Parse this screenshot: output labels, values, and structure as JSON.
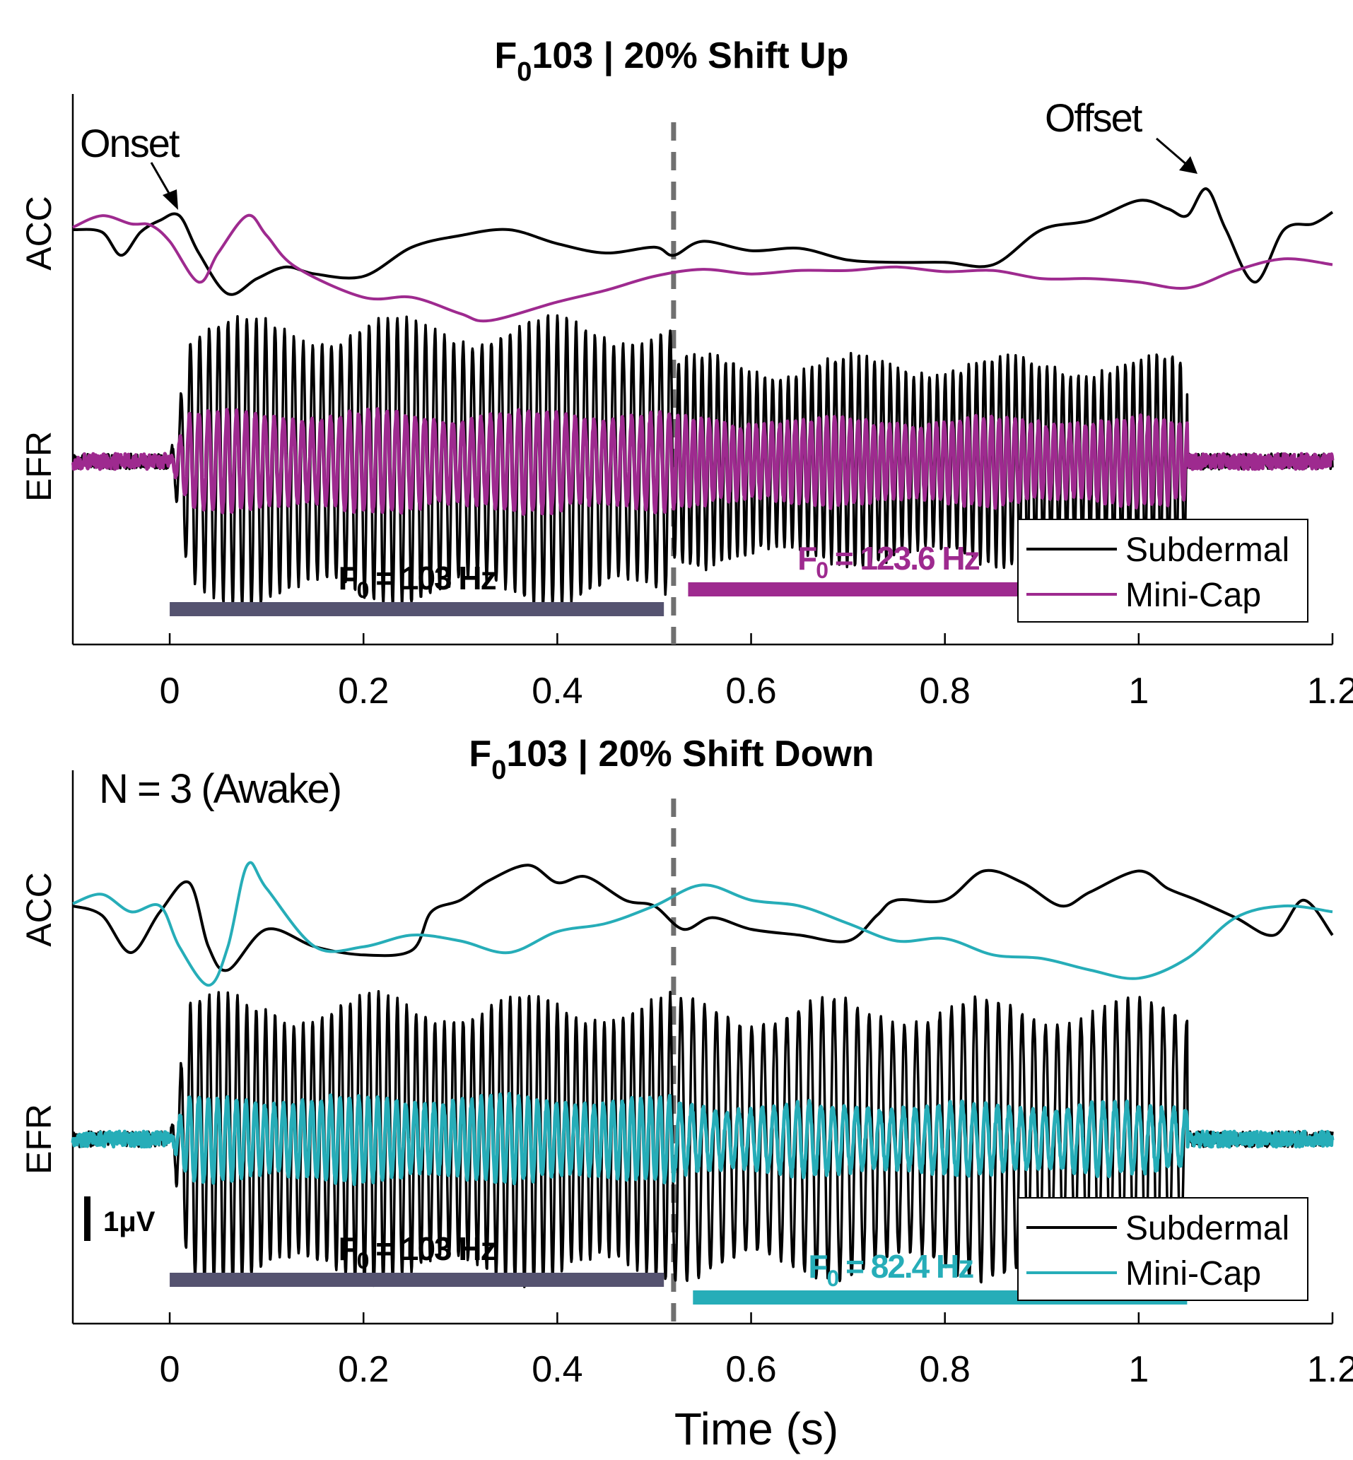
{
  "chart_data": [
    {
      "type": "line",
      "title": "F",
      "title_sub": "0",
      "title_rest": "103 | 20% Shift Up",
      "xlabel": "",
      "ylabels": [
        "ACC",
        "EFR"
      ],
      "xlim": [
        -0.1,
        1.2
      ],
      "xticks": [
        "0",
        "0.2",
        "0.4",
        "0.6",
        "0.8",
        "1",
        "1.2"
      ],
      "xtick_values": [
        0,
        0.2,
        0.4,
        0.6,
        0.8,
        1.0,
        1.2
      ],
      "grid": false,
      "legend": {
        "placement": "lower-right",
        "entries": [
          "Subdermal",
          "Mini-Cap"
        ]
      },
      "colors": {
        "subdermal": "#000000",
        "minicap": "#9e2a8f",
        "bar1": "#555370",
        "bar2": "#9e2a8f",
        "dashed": "#707070"
      },
      "shift_time_s": 0.52,
      "annotations": {
        "onset": "Onset",
        "offset": "Offset"
      },
      "annotation_times_s": {
        "onset": 0.01,
        "offset": 1.07
      },
      "segments": [
        {
          "label": "F",
          "sub": "0",
          "rest": " = 103 Hz",
          "start_s": 0.0,
          "end_s": 0.51,
          "f0_hz": 103
        },
        {
          "label": "F",
          "sub": "0",
          "rest": " = 123.6 Hz",
          "start_s": 0.535,
          "end_s": 1.05,
          "f0_hz": 123.6
        }
      ],
      "series": [
        {
          "name": "Subdermal",
          "signal": "ACC",
          "x": [
            -0.1,
            -0.07,
            -0.05,
            -0.03,
            -0.01,
            0.01,
            0.03,
            0.06,
            0.09,
            0.12,
            0.15,
            0.2,
            0.25,
            0.3,
            0.35,
            0.4,
            0.45,
            0.5,
            0.52,
            0.55,
            0.6,
            0.65,
            0.7,
            0.75,
            0.8,
            0.85,
            0.9,
            0.95,
            1.0,
            1.03,
            1.05,
            1.07,
            1.09,
            1.12,
            1.15,
            1.18,
            1.2
          ],
          "y": [
            0.0,
            -0.02,
            -0.22,
            -0.02,
            0.08,
            0.12,
            -0.2,
            -0.55,
            -0.42,
            -0.32,
            -0.38,
            -0.4,
            -0.15,
            -0.05,
            0.0,
            -0.12,
            -0.2,
            -0.15,
            -0.22,
            -0.1,
            -0.18,
            -0.16,
            -0.26,
            -0.28,
            -0.28,
            -0.3,
            0.0,
            0.08,
            0.25,
            0.18,
            0.12,
            0.35,
            0.0,
            -0.45,
            0.0,
            0.05,
            0.15
          ]
        },
        {
          "name": "Mini-Cap",
          "signal": "ACC",
          "x": [
            -0.1,
            -0.07,
            -0.04,
            -0.02,
            0.0,
            0.03,
            0.05,
            0.08,
            0.1,
            0.13,
            0.2,
            0.25,
            0.3,
            0.33,
            0.4,
            0.45,
            0.5,
            0.55,
            0.6,
            0.65,
            0.7,
            0.75,
            0.8,
            0.85,
            0.9,
            0.95,
            1.0,
            1.05,
            1.1,
            1.15,
            1.2
          ],
          "y": [
            0.02,
            0.12,
            0.05,
            0.04,
            -0.1,
            -0.45,
            -0.2,
            0.12,
            -0.05,
            -0.32,
            -0.58,
            -0.58,
            -0.72,
            -0.78,
            -0.62,
            -0.52,
            -0.4,
            -0.34,
            -0.38,
            -0.35,
            -0.35,
            -0.32,
            -0.36,
            -0.35,
            -0.42,
            -0.42,
            -0.45,
            -0.5,
            -0.35,
            -0.25,
            -0.3
          ]
        }
      ],
      "efr": [
        {
          "name": "Subdermal",
          "f0_segments_hz": [
            103,
            123.6
          ],
          "amplitude_rel": 1.0
        },
        {
          "name": "Mini-Cap",
          "f0_segments_hz": [
            103,
            123.6
          ],
          "amplitude_rel": 0.4
        }
      ]
    },
    {
      "type": "line",
      "title": "F",
      "title_sub": "0",
      "title_rest": "103 | 20% Shift Down",
      "xlabel": "Time (s)",
      "ylabels": [
        "ACC",
        "EFR"
      ],
      "xlim": [
        -0.1,
        1.2
      ],
      "xticks": [
        "0",
        "0.2",
        "0.4",
        "0.6",
        "0.8",
        "1",
        "1.2"
      ],
      "xtick_values": [
        0,
        0.2,
        0.4,
        0.6,
        0.8,
        1.0,
        1.2
      ],
      "grid": false,
      "legend": {
        "placement": "lower-right",
        "entries": [
          "Subdermal",
          "Mini-Cap"
        ]
      },
      "colors": {
        "subdermal": "#000000",
        "minicap": "#26adb8",
        "bar1": "#555370",
        "bar2": "#26adb8",
        "dashed": "#707070"
      },
      "shift_time_s": 0.52,
      "n_label": "N = 3 (Awake)",
      "scale_bar_label": "1μV",
      "segments": [
        {
          "label": "F",
          "sub": "0",
          "rest": " = 103 Hz",
          "start_s": 0.0,
          "end_s": 0.51,
          "f0_hz": 103
        },
        {
          "label": "F",
          "sub": "0",
          "rest": " = 82.4 Hz",
          "start_s": 0.54,
          "end_s": 1.05,
          "f0_hz": 82.4
        }
      ],
      "series": [
        {
          "name": "Subdermal",
          "signal": "ACC",
          "x": [
            -0.1,
            -0.07,
            -0.04,
            -0.01,
            0.02,
            0.04,
            0.06,
            0.1,
            0.15,
            0.2,
            0.25,
            0.27,
            0.3,
            0.33,
            0.37,
            0.4,
            0.43,
            0.47,
            0.5,
            0.53,
            0.56,
            0.6,
            0.65,
            0.7,
            0.73,
            0.75,
            0.8,
            0.84,
            0.88,
            0.92,
            0.95,
            1.0,
            1.03,
            1.06,
            1.1,
            1.14,
            1.17,
            1.2
          ],
          "y": [
            0.0,
            -0.08,
            -0.4,
            -0.05,
            0.2,
            -0.35,
            -0.55,
            -0.2,
            -0.35,
            -0.42,
            -0.38,
            -0.05,
            0.05,
            0.22,
            0.35,
            0.2,
            0.25,
            0.05,
            0.0,
            -0.2,
            -0.1,
            -0.2,
            -0.25,
            -0.3,
            -0.08,
            0.05,
            0.05,
            0.3,
            0.2,
            0.0,
            0.12,
            0.3,
            0.15,
            0.05,
            -0.1,
            -0.25,
            0.05,
            -0.25
          ]
        },
        {
          "name": "Mini-Cap",
          "signal": "ACC",
          "x": [
            -0.1,
            -0.07,
            -0.04,
            -0.01,
            0.01,
            0.04,
            0.06,
            0.08,
            0.1,
            0.15,
            0.2,
            0.25,
            0.3,
            0.35,
            0.4,
            0.45,
            0.5,
            0.55,
            0.6,
            0.65,
            0.7,
            0.75,
            0.8,
            0.85,
            0.9,
            0.95,
            1.0,
            1.05,
            1.1,
            1.15,
            1.2
          ],
          "y": [
            0.02,
            0.1,
            -0.05,
            0.0,
            -0.35,
            -0.68,
            -0.35,
            0.35,
            0.15,
            -0.35,
            -0.35,
            -0.25,
            -0.3,
            -0.4,
            -0.22,
            -0.15,
            0.0,
            0.18,
            0.05,
            0.0,
            -0.15,
            -0.3,
            -0.28,
            -0.42,
            -0.45,
            -0.55,
            -0.62,
            -0.45,
            -0.1,
            0.0,
            -0.05
          ]
        }
      ],
      "efr": [
        {
          "name": "Subdermal",
          "f0_segments_hz": [
            103,
            82.4
          ],
          "amplitude_rel": 1.0
        },
        {
          "name": "Mini-Cap",
          "f0_segments_hz": [
            103,
            82.4
          ],
          "amplitude_rel": 0.5
        }
      ]
    }
  ]
}
